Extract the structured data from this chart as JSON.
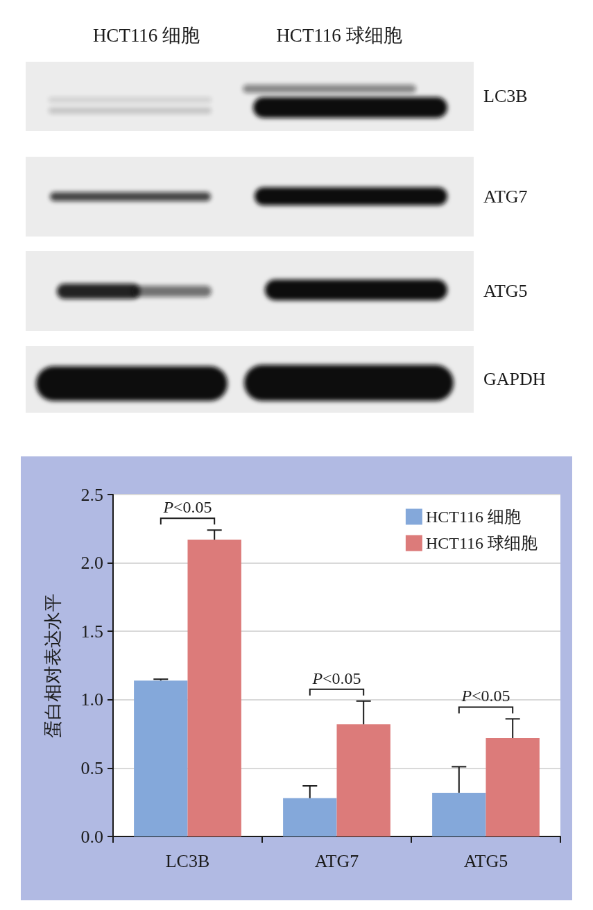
{
  "chart_data": {
    "type": "bar",
    "ylabel": "蛋白相对表达水平",
    "categories": [
      "LC3B",
      "ATG7",
      "ATG5"
    ],
    "series": [
      {
        "name": "HCT116 细胞",
        "color": "#84a8da",
        "values": [
          1.14,
          0.28,
          0.32
        ],
        "errors": [
          0.01,
          0.09,
          0.19
        ]
      },
      {
        "name": "HCT116 球细胞",
        "color": "#dc7b7a",
        "values": [
          2.17,
          0.82,
          0.72
        ],
        "errors": [
          0.07,
          0.17,
          0.14
        ]
      }
    ],
    "ylim": [
      0,
      2.5
    ],
    "yticks": [
      {
        "value": 0,
        "label": "0.0"
      },
      0.5,
      {
        "value": 1,
        "label": "1.0"
      },
      1.5,
      {
        "value": 2,
        "label": "2.0"
      },
      2.5
    ],
    "grid": "y",
    "legend": "top right",
    "annotations": [
      "P<0.05",
      "P<0.05",
      "P<0.05",
      "HCT116 细胞",
      "HCT116 球细胞",
      "LC3B",
      "ATG7",
      "ATG5",
      "GAPDH"
    ]
  }
}
